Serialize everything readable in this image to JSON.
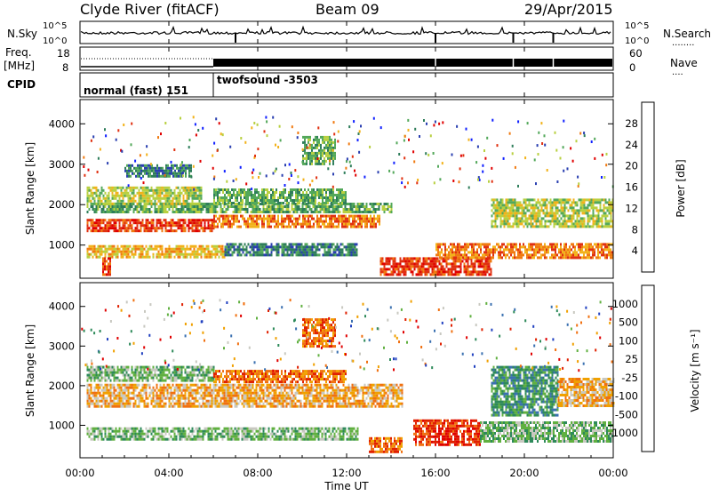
{
  "header": {
    "station": "Clyde River (fitACF)",
    "beam": "Beam 09",
    "date": "29/Apr/2015"
  },
  "noise_panel": {
    "left_label": "N.Sky",
    "right_label": "N.Search",
    "right_label_sub": "........",
    "left_ticks": [
      "10^5",
      "10^0"
    ],
    "right_ticks": [
      "10^5",
      "10^0"
    ]
  },
  "freq_panel": {
    "left_label_line1": "Freq.",
    "left_label_line2": "[MHz]",
    "right_label": "Nave",
    "right_label_sub": "....",
    "left_ticks": [
      "18",
      "8"
    ],
    "right_ticks": [
      "60",
      "0"
    ]
  },
  "cpid_panel": {
    "label": "CPID",
    "segments": [
      {
        "name": "normal (fast) 151",
        "start_hour": 0,
        "end_hour": 6
      },
      {
        "name": "twofsound -3503",
        "start_hour": 6,
        "end_hour": 24
      }
    ]
  },
  "x_axis": {
    "label": "Time UT",
    "ticks": [
      "00:00",
      "04:00",
      "08:00",
      "12:00",
      "16:00",
      "20:00",
      "00:00"
    ],
    "tick_hours": [
      0,
      4,
      8,
      12,
      16,
      20,
      24
    ]
  },
  "chart_data": [
    {
      "type": "heatmap",
      "parameter": "Power",
      "ylabel": "Slant Range [km]",
      "yticks": [
        "1000",
        "2000",
        "3000",
        "4000"
      ],
      "ytick_values": [
        1000,
        2000,
        3000,
        4000
      ],
      "ylim": [
        180,
        4600
      ],
      "xlim_hours": [
        0,
        24
      ],
      "colorbar": {
        "label": "Power [dB]",
        "tick_labels": [
          "4",
          "8",
          "12",
          "16",
          "20",
          "24",
          "28"
        ],
        "tick_values": [
          4,
          8,
          12,
          16,
          20,
          24,
          28
        ],
        "range": [
          0,
          32
        ],
        "colors": [
          "#1020ff",
          "#2a3fb0",
          "#2e7d5a",
          "#53a85a",
          "#b8d040",
          "#f2b21a",
          "#f07a10",
          "#e03010",
          "#e00000"
        ]
      },
      "bands": [
        {
          "t0": 0.3,
          "t1": 6.0,
          "r0": 1350,
          "r1": 1650,
          "value": 26
        },
        {
          "t0": 6.0,
          "t1": 13.5,
          "r0": 1450,
          "r1": 1750,
          "value": 22
        },
        {
          "t0": 0.3,
          "t1": 14.0,
          "r0": 1800,
          "r1": 2050,
          "value": 13
        },
        {
          "t0": 0.3,
          "t1": 5.5,
          "r0": 2050,
          "r1": 2450,
          "value": 15
        },
        {
          "t0": 6.0,
          "t1": 12.0,
          "r0": 2050,
          "r1": 2400,
          "value": 10
        },
        {
          "t0": 0.3,
          "t1": 6.5,
          "r0": 700,
          "r1": 1000,
          "value": 20
        },
        {
          "t0": 1.0,
          "t1": 1.4,
          "r0": 300,
          "r1": 700,
          "value": 27
        },
        {
          "t0": 6.5,
          "t1": 12.5,
          "r0": 750,
          "r1": 1050,
          "value": 9
        },
        {
          "t0": 13.5,
          "t1": 18.5,
          "r0": 300,
          "r1": 700,
          "value": 27
        },
        {
          "t0": 16.0,
          "t1": 24.0,
          "r0": 700,
          "r1": 1050,
          "value": 23
        },
        {
          "t0": 18.5,
          "t1": 24.0,
          "r0": 1450,
          "r1": 2150,
          "value": 17
        },
        {
          "t0": 10.0,
          "t1": 11.5,
          "r0": 3000,
          "r1": 3700,
          "value": 12
        },
        {
          "t0": 2.0,
          "t1": 5.0,
          "r0": 2700,
          "r1": 3000,
          "value": 7
        }
      ]
    },
    {
      "type": "heatmap",
      "parameter": "Velocity",
      "ylabel": "Slant Range [km]",
      "yticks": [
        "1000",
        "2000",
        "3000",
        "4000"
      ],
      "ytick_values": [
        1000,
        2000,
        3000,
        4000
      ],
      "ylim": [
        180,
        4600
      ],
      "xlim_hours": [
        0,
        24
      ],
      "colorbar": {
        "label": "Velocity [m s⁻¹]",
        "tick_labels": [
          "1000",
          "500",
          "100",
          "25",
          "-25",
          "-100",
          "-500",
          "-1000"
        ],
        "colors": [
          "#2040c0",
          "#3a70b0",
          "#2e8a5a",
          "#60b040",
          "#c8c8c0",
          "#f0a000",
          "#f07010",
          "#e02000",
          "#e00000"
        ]
      },
      "bands": [
        {
          "t0": 0.3,
          "t1": 14.5,
          "r0": 1500,
          "r1": 2050,
          "value": "-25"
        },
        {
          "t0": 0.3,
          "t1": 6.0,
          "r0": 2100,
          "r1": 2500,
          "value": "100"
        },
        {
          "t0": 0.3,
          "t1": 12.5,
          "r0": 650,
          "r1": 950,
          "value": "100"
        },
        {
          "t0": 6.0,
          "t1": 12.0,
          "r0": 2100,
          "r1": 2400,
          "value": "-100"
        },
        {
          "t0": 15.0,
          "t1": 18.0,
          "r0": 500,
          "r1": 1150,
          "value": "-500"
        },
        {
          "t0": 18.0,
          "t1": 24.0,
          "r0": 600,
          "r1": 1100,
          "value": "100"
        },
        {
          "t0": 18.5,
          "t1": 21.5,
          "r0": 1250,
          "r1": 2500,
          "value": "500"
        },
        {
          "t0": 21.5,
          "t1": 24.0,
          "r0": 1500,
          "r1": 2200,
          "value": "-25"
        },
        {
          "t0": 10.0,
          "t1": 11.5,
          "r0": 3000,
          "r1": 3700,
          "value": "-100"
        },
        {
          "t0": 13.0,
          "t1": 14.5,
          "r0": 300,
          "r1": 700,
          "value": "-100"
        }
      ]
    }
  ]
}
